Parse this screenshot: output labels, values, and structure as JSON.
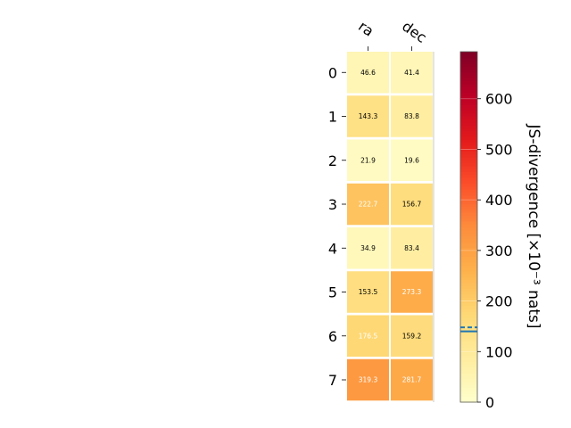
{
  "chart_data": {
    "type": "heatmap",
    "columns": [
      "ra",
      "dec"
    ],
    "rows": [
      "0",
      "1",
      "2",
      "3",
      "4",
      "5",
      "6",
      "7"
    ],
    "values": [
      [
        46.6,
        41.4
      ],
      [
        143.3,
        83.8
      ],
      [
        21.9,
        19.6
      ],
      [
        222.7,
        156.7
      ],
      [
        34.9,
        83.4
      ],
      [
        153.5,
        273.3
      ],
      [
        176.5,
        159.2
      ],
      [
        319.3,
        281.7
      ]
    ],
    "value_labels": [
      [
        "46.6",
        "41.4"
      ],
      [
        "143.3",
        "83.8"
      ],
      [
        "21.9",
        "19.6"
      ],
      [
        "222.7",
        "156.7"
      ],
      [
        "34.9",
        "83.4"
      ],
      [
        "153.5",
        "273.3"
      ],
      [
        "176.5",
        "159.2"
      ],
      [
        "319.3",
        "281.7"
      ]
    ],
    "colorbar": {
      "label": "JS-divergence [×10⁻³ nats]",
      "range": [
        0,
        693
      ],
      "ticks": [
        0,
        100,
        200,
        300,
        400,
        500,
        600
      ],
      "tick_labels": [
        "0",
        "100",
        "200",
        "300",
        "400",
        "500",
        "600"
      ],
      "colormap": "YlOrRd",
      "markers": [
        {
          "style": "dashed",
          "value": 148,
          "color": "#1f77b4"
        },
        {
          "style": "solid",
          "value": 140,
          "color": "#1f77b4"
        }
      ]
    }
  }
}
